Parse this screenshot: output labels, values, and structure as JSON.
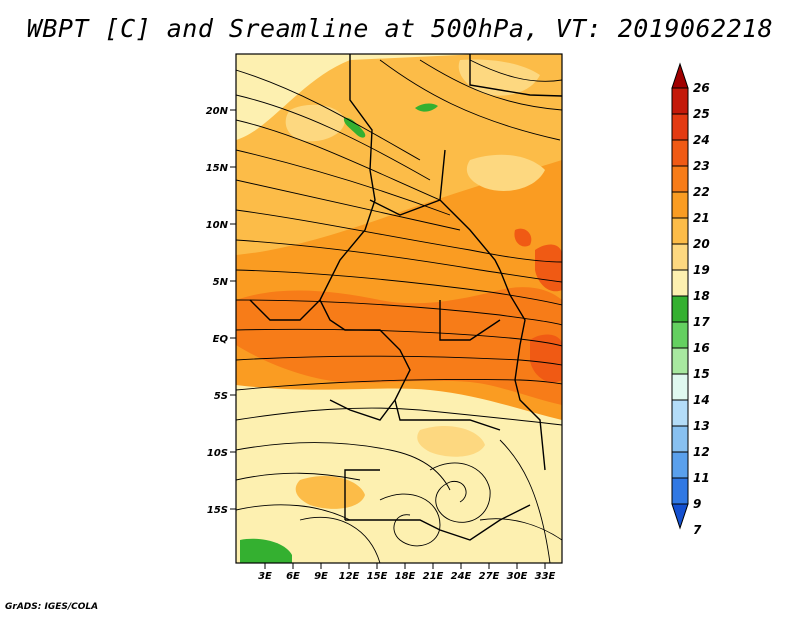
{
  "title": "WBPT [C] and Sreamline at 500hPa, VT: 2019062218",
  "credit": "GrADS: IGES/COLA",
  "map": {
    "lat_labels": [
      "20N",
      "15N",
      "10N",
      "5N",
      "EQ",
      "5S",
      "10S",
      "15S"
    ],
    "lon_labels": [
      "3E",
      "6E",
      "9E",
      "12E",
      "15E",
      "18E",
      "21E",
      "24E",
      "27E",
      "30E",
      "33E"
    ]
  },
  "colorbar": {
    "levels": [
      "26",
      "25",
      "24",
      "23",
      "22",
      "21",
      "20",
      "19",
      "18",
      "17",
      "16",
      "15",
      "14",
      "13",
      "12",
      "11",
      "9",
      "7"
    ],
    "colors": [
      "#a00000",
      "#c41a0a",
      "#e33a12",
      "#f05a14",
      "#f77c18",
      "#fa9c22",
      "#fcbc48",
      "#fdd880",
      "#fdf0b0",
      "#34b030",
      "#64d060",
      "#a8e8a0",
      "#e0f8f0",
      "#b4dcf8",
      "#88c0f0",
      "#5aa0ec",
      "#3078e4",
      "#1450d0"
    ]
  }
}
